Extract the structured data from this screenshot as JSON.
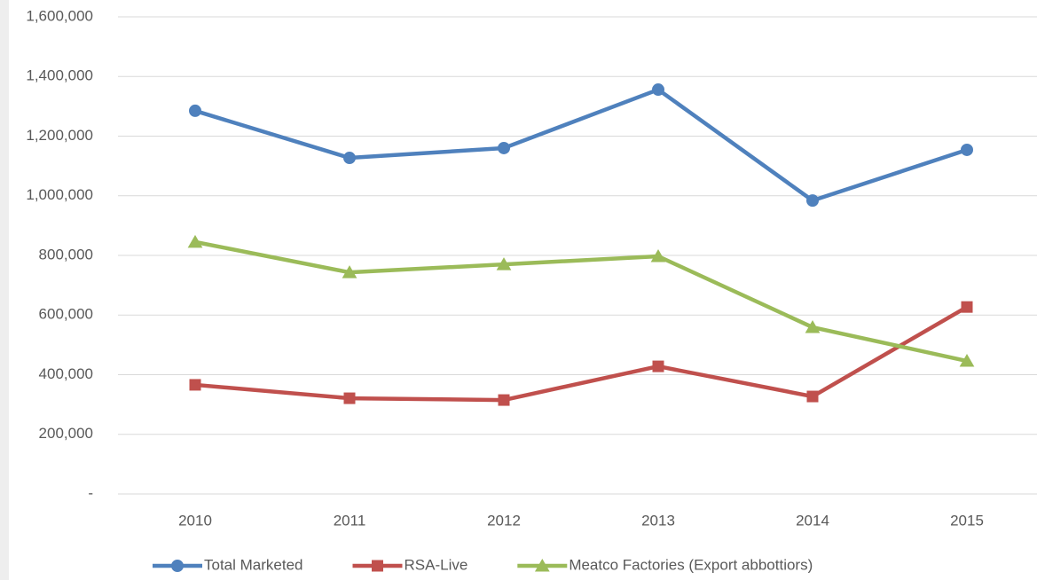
{
  "chart_data": {
    "type": "line",
    "categories": [
      "2010",
      "2011",
      "2012",
      "2013",
      "2014",
      "2015"
    ],
    "series": [
      {
        "name": "Total Marketed",
        "color": "#4f81bd",
        "marker": "circle",
        "values": [
          1285000,
          1127000,
          1160000,
          1356000,
          984000,
          1154000
        ]
      },
      {
        "name": "RSA-Live",
        "color": "#c0504d",
        "marker": "square",
        "values": [
          366000,
          321000,
          315000,
          428000,
          327000,
          627000
        ]
      },
      {
        "name": "Meatco Factories (Export abbottiors)",
        "color": "#9bbb59",
        "marker": "triangle",
        "values": [
          845000,
          743000,
          770000,
          797000,
          559000,
          446000
        ]
      }
    ],
    "ylim": [
      0,
      1600000
    ],
    "yticks": [
      {
        "value": 0,
        "label": "-"
      },
      {
        "value": 200000,
        "label": "200,000"
      },
      {
        "value": 400000,
        "label": "400,000"
      },
      {
        "value": 600000,
        "label": "600,000"
      },
      {
        "value": 800000,
        "label": "800,000"
      },
      {
        "value": 1000000,
        "label": "1,000,000"
      },
      {
        "value": 1200000,
        "label": "1,200,000"
      },
      {
        "value": 1400000,
        "label": "1,400,000"
      },
      {
        "value": 1600000,
        "label": "1,600,000"
      }
    ],
    "grid": true,
    "legend": "bottom"
  }
}
